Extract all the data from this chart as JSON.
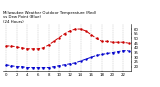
{
  "title": "Milwaukee Weather Outdoor Temperature (Red)\nvs Dew Point (Blue)\n(24 Hours)",
  "hours": [
    0,
    1,
    2,
    3,
    4,
    5,
    6,
    7,
    8,
    9,
    10,
    11,
    12,
    13,
    14,
    15,
    16,
    17,
    18,
    19,
    20,
    21,
    22,
    23
  ],
  "temp": [
    42,
    42,
    41,
    40,
    39,
    39,
    39,
    40,
    43,
    47,
    51,
    55,
    58,
    60,
    60,
    58,
    54,
    50,
    47,
    47,
    46,
    46,
    46,
    45
  ],
  "dew": [
    22,
    21,
    20,
    20,
    19,
    19,
    19,
    19,
    19,
    20,
    21,
    22,
    23,
    24,
    26,
    28,
    30,
    32,
    33,
    34,
    35,
    36,
    37,
    37
  ],
  "temp_color": "#cc0000",
  "dew_color": "#0000cc",
  "bg_color": "#ffffff",
  "ylim": [
    15,
    65
  ],
  "ytick_vals": [
    20,
    25,
    30,
    35,
    40,
    45,
    50,
    55,
    60
  ],
  "ytick_labels": [
    "20",
    "25",
    "30",
    "35",
    "40",
    "45",
    "50",
    "55",
    "60"
  ],
  "xtick_vals": [
    0,
    2,
    4,
    6,
    8,
    10,
    12,
    14,
    16,
    18,
    20,
    22
  ],
  "grid_color": "#bbbbbb",
  "linewidth": 0.7,
  "markersize": 1.5,
  "title_fontsize": 2.8,
  "tick_fontsize": 2.8
}
